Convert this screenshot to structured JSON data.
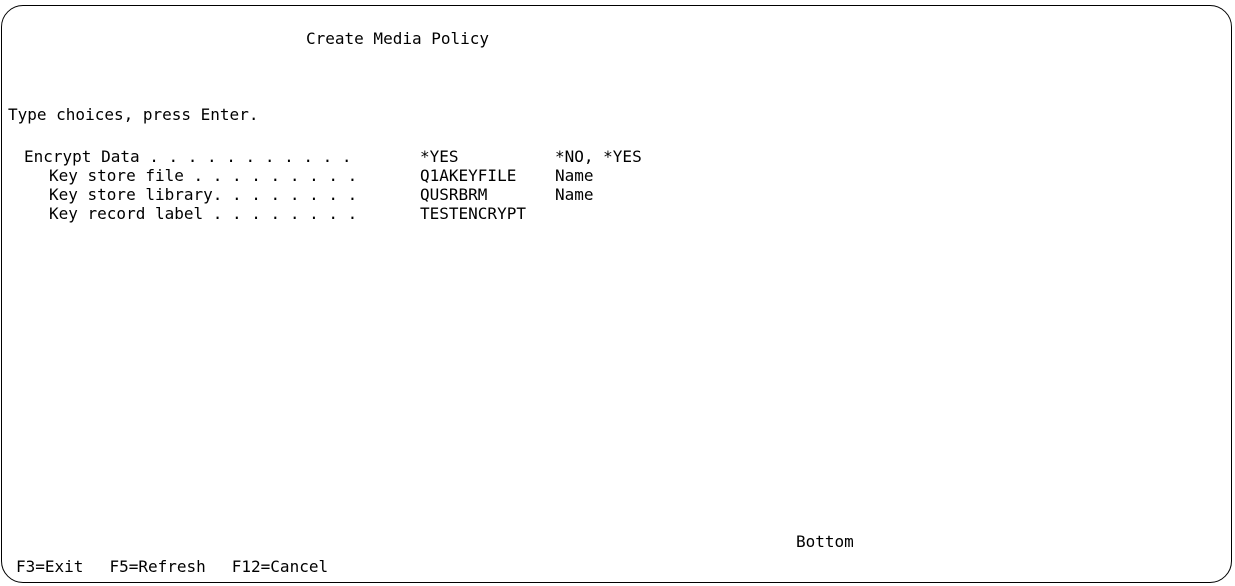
{
  "screen": {
    "title": "Create Media Policy",
    "instruction": "Type choices, press Enter.",
    "fields": [
      {
        "label": "Encrypt Data . . . . . . . . . . .",
        "value": "*YES",
        "hint": "*NO, *YES"
      },
      {
        "label": "Key store file . . . . . . . . .",
        "value": "Q1AKEYFILE",
        "hint": "Name"
      },
      {
        "label": "Key store library. . . . . . . .",
        "value": "QUSRBRM",
        "hint": "Name"
      },
      {
        "label": "Key record label . . . . . . . .",
        "value": "TESTENCRYPT",
        "hint": ""
      }
    ],
    "position_indicator": "Bottom"
  },
  "function_keys": [
    "F3=Exit",
    "F5=Refresh",
    "F12=Cancel"
  ]
}
